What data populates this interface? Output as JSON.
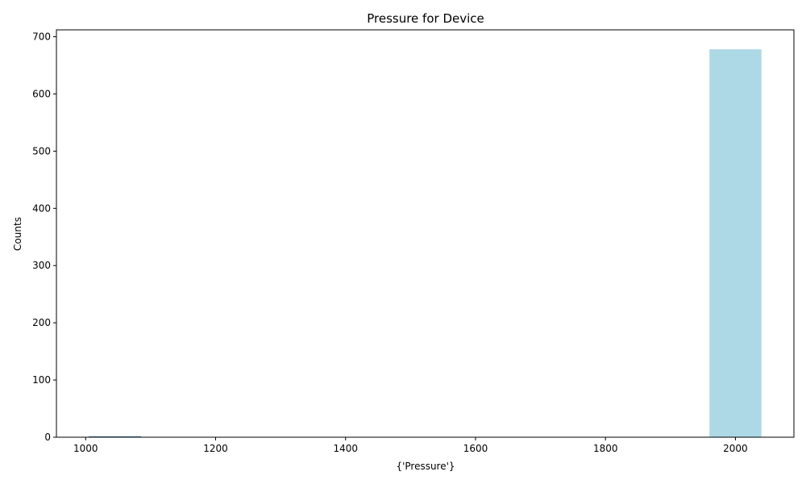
{
  "chart_data": {
    "type": "bar",
    "title": "Pressure for Device",
    "xlabel": "{'Pressure'}",
    "ylabel": "Counts",
    "bars": [
      {
        "x_start": 1005,
        "x_end": 1085,
        "value": 1
      },
      {
        "x_start": 1960,
        "x_end": 2040,
        "value": 678
      }
    ],
    "xlim": [
      955,
      2090
    ],
    "ylim": [
      0,
      712
    ],
    "xticks": [
      1000,
      1200,
      1400,
      1600,
      1800,
      2000
    ],
    "yticks": [
      0,
      100,
      200,
      300,
      400,
      500,
      600,
      700
    ],
    "grid": false,
    "legend": "none",
    "bar_color": "#add8e6",
    "edge_color": "#4682b4"
  }
}
